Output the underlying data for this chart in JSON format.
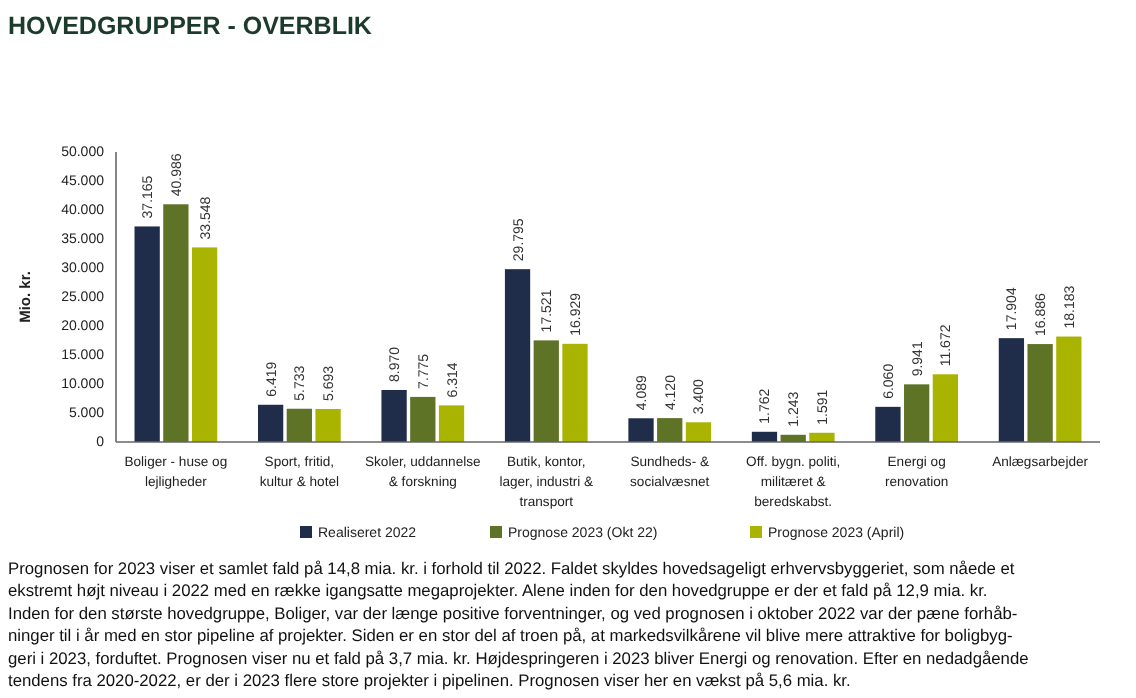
{
  "chart_data": {
    "type": "bar",
    "title": "HOVEDGRUPPER - OVERBLIK",
    "ylabel": "Mio. kr.",
    "categories": [
      "Boliger - huse og lejligheder",
      "Sport, fritid, kultur & hotel",
      "Skoler, uddannelse & forskning",
      "Butik, kontor, lager, industri & transport",
      "Sundheds- & socialvæsnet",
      "Off. bygn. politi, militæret & beredskabst.",
      "Energi og renovation",
      "Anlægsarbejder"
    ],
    "series": [
      {
        "name": "Realiseret 2022",
        "color": "#1f2d4a",
        "values": [
          37165,
          6419,
          8970,
          29795,
          4089,
          1762,
          6060,
          17904
        ],
        "value_labels": [
          "37.165",
          "6.419",
          "8.970",
          "29.795",
          "4.089",
          "1.762",
          "6.060",
          "17.904"
        ]
      },
      {
        "name": "Prognose 2023 (Okt 22)",
        "color": "#5e7326",
        "values": [
          40986,
          5733,
          7775,
          17521,
          4120,
          1243,
          9941,
          16886
        ],
        "value_labels": [
          "40.986",
          "5.733",
          "7.775",
          "17.521",
          "4.120",
          "1.243",
          "9.941",
          "16.886"
        ]
      },
      {
        "name": "Prognose 2023 (April)",
        "color": "#a8b400",
        "values": [
          33548,
          5693,
          6314,
          16929,
          3400,
          1591,
          11672,
          18183
        ],
        "value_labels": [
          "33.548",
          "5.693",
          "6.314",
          "16.929",
          "3.400",
          "1.591",
          "11.672",
          "18.183"
        ]
      }
    ],
    "ylim": [
      0,
      50000
    ],
    "yticks": [
      {
        "value": 0,
        "label": "0"
      },
      {
        "value": 5000,
        "label": "5.000"
      },
      {
        "value": 10000,
        "label": "10.000"
      },
      {
        "value": 15000,
        "label": "15.000"
      },
      {
        "value": 20000,
        "label": "20.000"
      },
      {
        "value": 25000,
        "label": "25.000"
      },
      {
        "value": 30000,
        "label": "30.000"
      },
      {
        "value": 35000,
        "label": "35.000"
      },
      {
        "value": 40000,
        "label": "40.000"
      },
      {
        "value": 45000,
        "label": "45.000"
      },
      {
        "value": 50000,
        "label": "50.000"
      }
    ],
    "grid": false,
    "legend": "bottom",
    "annotations": [
      "Prognosen for 2023 viser et samlet fald på 14,8 mia. kr. i forhold til 2022. Faldet skyldes hovedsageligt erhvervsbyggeriet, som nåede et",
      "ekstremt højt niveau i 2022 med en række igangsatte megaprojekter. Alene inden for den hovedgruppe er der et fald på 12,9 mia. kr.",
      "Inden for den største hovedgruppe, Boliger, var der længe positive forventninger, og ved prognosen i oktober 2022 var der pæne forhåb-",
      "ninger til i år med en stor pipeline af projekter. Siden er en stor del af troen på, at markedsvilkårene vil blive mere attraktive for boligbyg-",
      "geri i 2023, forduftet. Prognosen viser nu et fald på 3,7 mia. kr. Højdespringeren i 2023 bliver Energi og renovation. Efter en nedadgående",
      "tendens fra 2020-2022, er der i 2023 flere store projekter i pipelinen. Prognosen viser her en vækst på 5,6 mia. kr."
    ]
  }
}
